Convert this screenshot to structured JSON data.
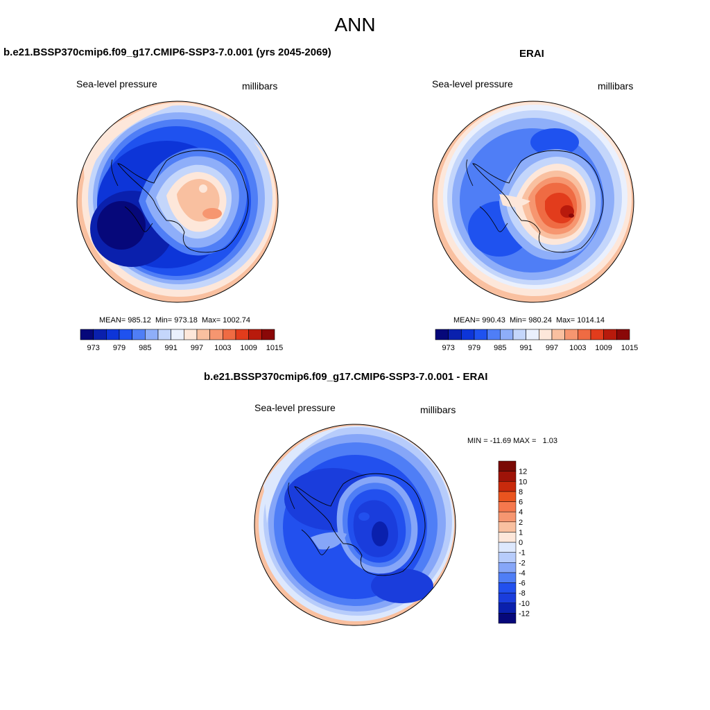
{
  "title": "ANN",
  "colors": {
    "fill_levels_12": [
      "#06087a",
      "#0a20ad",
      "#0d35d8",
      "#1f52ef",
      "#4f7ef6",
      "#8eaef9",
      "#c4d6fb",
      "#eaf0fd",
      "#fde7da",
      "#f9c0a0",
      "#f69670",
      "#ef6b43",
      "#e23c1c",
      "#b81a0c",
      "#8a0808"
    ],
    "diff_levels": [
      "#06087a",
      "#0a20ad",
      "#1a3ddc",
      "#2250ee",
      "#4f7ef6",
      "#86a6f8",
      "#b7ccfb",
      "#dde8fd",
      "#fde7da",
      "#f9c0a0",
      "#f69670",
      "#f5784d",
      "#e9541f",
      "#c92a0c",
      "#9e1308",
      "#7a0a05"
    ],
    "coast": "#000000",
    "border": "#000000"
  },
  "chart_data": [
    {
      "type": "contour-map",
      "panel": "model",
      "title": "b.e21.BSSP370cmip6.f09_g17.CMIP6-SSP3-7.0.001 (yrs 2045-2069)",
      "left_label": "Sea-level pressure",
      "right_label": "millibars",
      "stats_text": "MEAN= 985.12  Min= 973.18  Max= 1002.74",
      "stats": {
        "mean": 985.12,
        "min": 973.18,
        "max": 1002.74
      },
      "levels": [
        973,
        976,
        979,
        982,
        985,
        988,
        991,
        994,
        997,
        1000,
        1003,
        1006,
        1009,
        1012,
        1015
      ],
      "colorbar_ticks": [
        "973",
        "979",
        "985",
        "991",
        "997",
        "1003",
        "1009",
        "1015"
      ],
      "units": "millibars"
    },
    {
      "type": "contour-map",
      "panel": "obs",
      "title": "ERAI",
      "left_label": "Sea-level pressure",
      "right_label": "millibars",
      "stats_text": "MEAN= 990.43  Min= 980.24  Max= 1014.14",
      "stats": {
        "mean": 990.43,
        "min": 980.24,
        "max": 1014.14
      },
      "levels": [
        973,
        976,
        979,
        982,
        985,
        988,
        991,
        994,
        997,
        1000,
        1003,
        1006,
        1009,
        1012,
        1015
      ],
      "colorbar_ticks": [
        "973",
        "979",
        "985",
        "991",
        "997",
        "1003",
        "1009",
        "1015"
      ],
      "units": "millibars"
    },
    {
      "type": "contour-map",
      "panel": "difference",
      "title": "b.e21.BSSP370cmip6.f09_g17.CMIP6-SSP3-7.0.001 - ERAI",
      "left_label": "Sea-level pressure",
      "right_label": "millibars",
      "stats_text": "MIN = -11.69 MAX =   1.03",
      "stats": {
        "min": -11.69,
        "max": 1.03
      },
      "levels": [
        -12,
        -10,
        -8,
        -6,
        -4,
        -2,
        -1,
        0,
        1,
        2,
        4,
        6,
        8,
        10,
        12
      ],
      "colorbar_labels": [
        "12",
        "10",
        "8",
        "6",
        "4",
        "2",
        "1",
        "0",
        "-1",
        "-2",
        "-4",
        "-6",
        "-8",
        "-10",
        "-12"
      ],
      "units": "millibars"
    }
  ]
}
